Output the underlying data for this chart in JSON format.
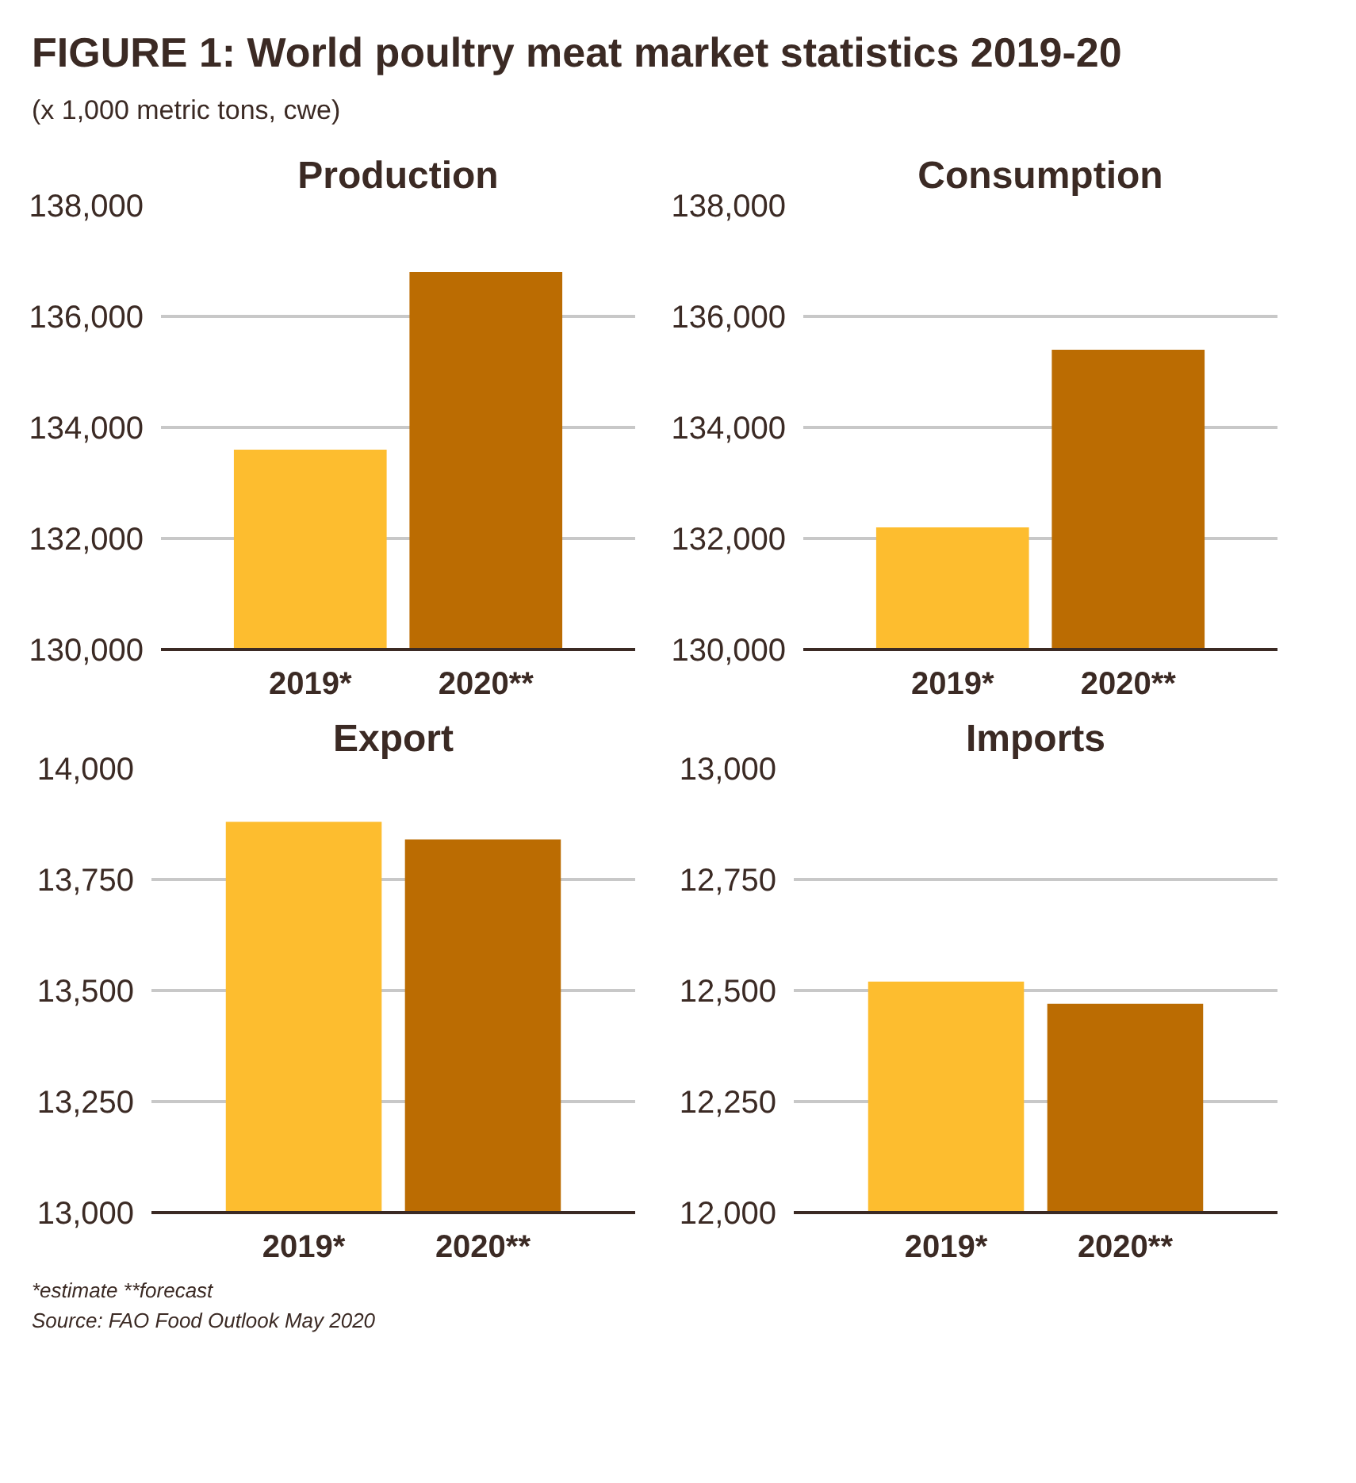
{
  "chart_data": [
    {
      "type": "other",
      "title": "FIGURE 1: World poultry meat market statistics 2019-20",
      "subtitle": "(x 1,000 metric tons, cwe)",
      "annotations": [
        "*estimate  **forecast",
        "Source: FAO Food Outlook May 2020"
      ]
    },
    {
      "type": "bar",
      "title": "Production",
      "categories": [
        "2019*",
        "2020**"
      ],
      "values": [
        133600,
        136800
      ],
      "colors": [
        "#fdbd2f",
        "#bb6c02"
      ],
      "ylim": [
        130000,
        138000
      ],
      "yticks": [
        {
          "value": 130000,
          "label": "130,000"
        },
        {
          "value": 132000,
          "label": "132,000"
        },
        {
          "value": 134000,
          "label": "134,000"
        },
        {
          "value": 136000,
          "label": "136,000"
        },
        {
          "value": 138000,
          "label": "138,000"
        }
      ],
      "grid": "y"
    },
    {
      "type": "bar",
      "title": "Consumption",
      "categories": [
        "2019*",
        "2020**"
      ],
      "values": [
        132200,
        135400
      ],
      "colors": [
        "#fdbd2f",
        "#bb6c02"
      ],
      "ylim": [
        130000,
        138000
      ],
      "yticks": [
        {
          "value": 130000,
          "label": "130,000"
        },
        {
          "value": 132000,
          "label": "132,000"
        },
        {
          "value": 134000,
          "label": "134,000"
        },
        {
          "value": 136000,
          "label": "136,000"
        },
        {
          "value": 138000,
          "label": "138,000"
        }
      ],
      "grid": "y"
    },
    {
      "type": "bar",
      "title": "Export",
      "categories": [
        "2019*",
        "2020**"
      ],
      "values": [
        13880,
        13840
      ],
      "colors": [
        "#fdbd2f",
        "#bb6c02"
      ],
      "ylim": [
        13000,
        14000
      ],
      "yticks": [
        {
          "value": 13000,
          "label": "13,000"
        },
        {
          "value": 13250,
          "label": "13,250"
        },
        {
          "value": 13500,
          "label": "13,500"
        },
        {
          "value": 13750,
          "label": "13,750"
        },
        {
          "value": 14000,
          "label": "14,000"
        }
      ],
      "grid": "y"
    },
    {
      "type": "bar",
      "title": "Imports",
      "categories": [
        "2019*",
        "2020**"
      ],
      "values": [
        12520,
        12470
      ],
      "colors": [
        "#fdbd2f",
        "#bb6c02"
      ],
      "ylim": [
        12000,
        13000
      ],
      "yticks": [
        {
          "value": 12000,
          "label": "12,000"
        },
        {
          "value": 12250,
          "label": "12,250"
        },
        {
          "value": 12500,
          "label": "12,500"
        },
        {
          "value": 12750,
          "label": "12,750"
        },
        {
          "value": 13000,
          "label": "13,000"
        }
      ],
      "grid": "y"
    }
  ]
}
